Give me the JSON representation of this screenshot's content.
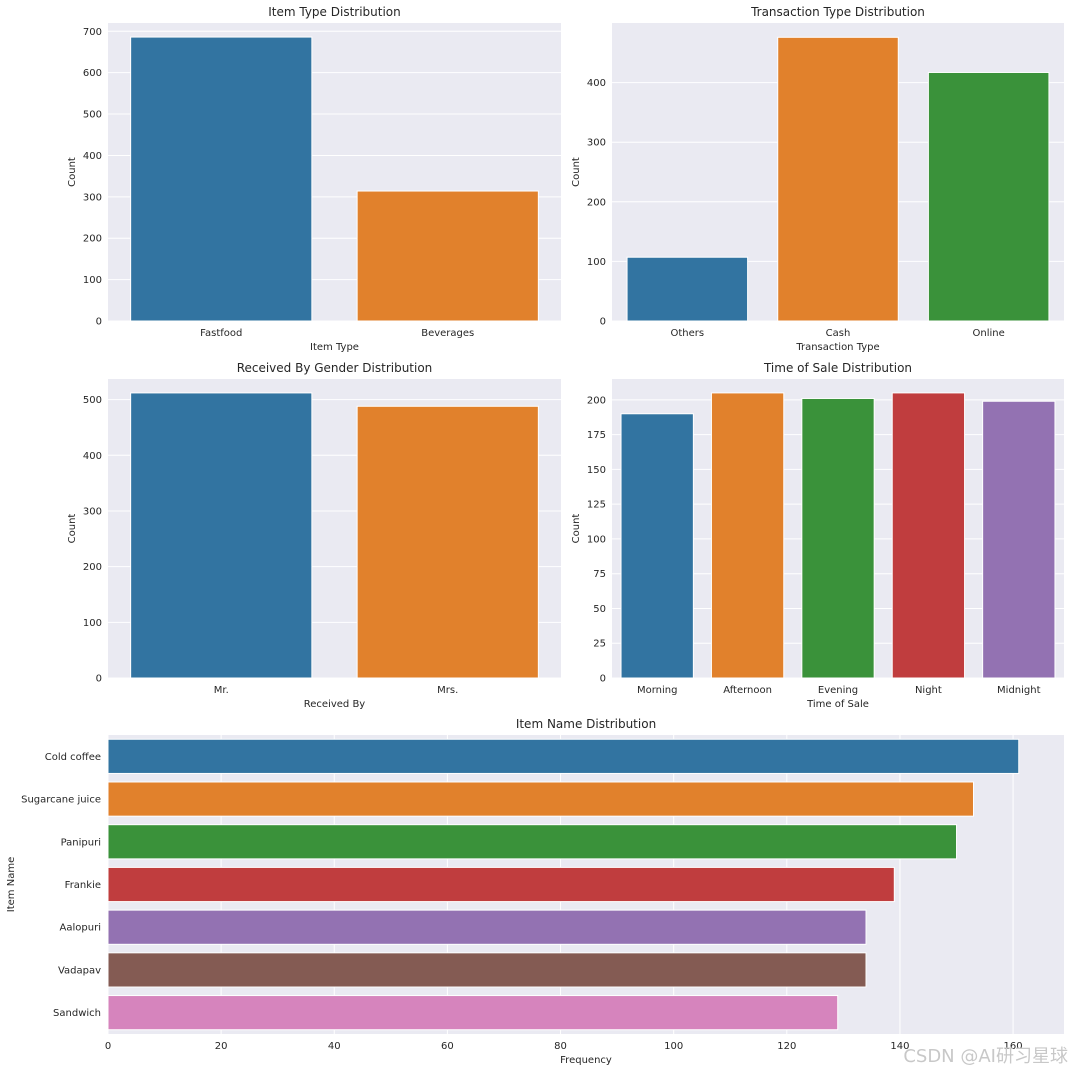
{
  "watermark": "CSDN @AI研习星球",
  "chart_data": [
    {
      "id": "item-type",
      "type": "bar",
      "title": "Item Type Distribution",
      "xlabel": "Item Type",
      "ylabel": "Count",
      "categories": [
        "Fastfood",
        "Beverages"
      ],
      "values": [
        686,
        314
      ],
      "ylim": [
        0,
        720
      ],
      "yticks": [
        0,
        100,
        200,
        300,
        400,
        500,
        600,
        700
      ],
      "colors": [
        "#3274a1",
        "#e1812c"
      ]
    },
    {
      "id": "transaction-type",
      "type": "bar",
      "title": "Transaction Type Distribution",
      "xlabel": "Transaction Type",
      "ylabel": "Count",
      "categories": [
        "Others",
        "Cash",
        "Online"
      ],
      "values": [
        107,
        476,
        417
      ],
      "ylim": [
        0,
        500
      ],
      "yticks": [
        0,
        100,
        200,
        300,
        400
      ],
      "colors": [
        "#3274a1",
        "#e1812c",
        "#3a923a"
      ]
    },
    {
      "id": "received-by",
      "type": "bar",
      "title": "Received By Gender Distribution",
      "xlabel": "Received By",
      "ylabel": "Count",
      "categories": [
        "Mr.",
        "Mrs."
      ],
      "values": [
        512,
        488
      ],
      "ylim": [
        0,
        537
      ],
      "yticks": [
        0,
        100,
        200,
        300,
        400,
        500
      ],
      "colors": [
        "#3274a1",
        "#e1812c"
      ]
    },
    {
      "id": "time-of-sale",
      "type": "bar",
      "title": "Time of Sale Distribution",
      "xlabel": "Time of Sale",
      "ylabel": "Count",
      "categories": [
        "Morning",
        "Afternoon",
        "Evening",
        "Night",
        "Midnight"
      ],
      "values": [
        190,
        205,
        201,
        205,
        199
      ],
      "ylim": [
        0,
        215
      ],
      "yticks": [
        0,
        25,
        50,
        75,
        100,
        125,
        150,
        175,
        200
      ],
      "colors": [
        "#3274a1",
        "#e1812c",
        "#3a923a",
        "#c03d3e",
        "#9372b2"
      ]
    },
    {
      "id": "item-name",
      "type": "barh",
      "title": "Item Name Distribution",
      "xlabel": "Frequency",
      "ylabel": "Item Name",
      "categories": [
        "Cold coffee",
        "Sugarcane juice",
        "Panipuri",
        "Frankie",
        "Aalopuri",
        "Vadapav",
        "Sandwich"
      ],
      "values": [
        161,
        153,
        150,
        139,
        134,
        134,
        129
      ],
      "xlim": [
        0,
        169
      ],
      "xticks": [
        0,
        20,
        40,
        60,
        80,
        100,
        120,
        140,
        160
      ],
      "colors": [
        "#3274a1",
        "#e1812c",
        "#3a923a",
        "#c03d3e",
        "#9372b2",
        "#845b53",
        "#d684bd"
      ]
    }
  ]
}
